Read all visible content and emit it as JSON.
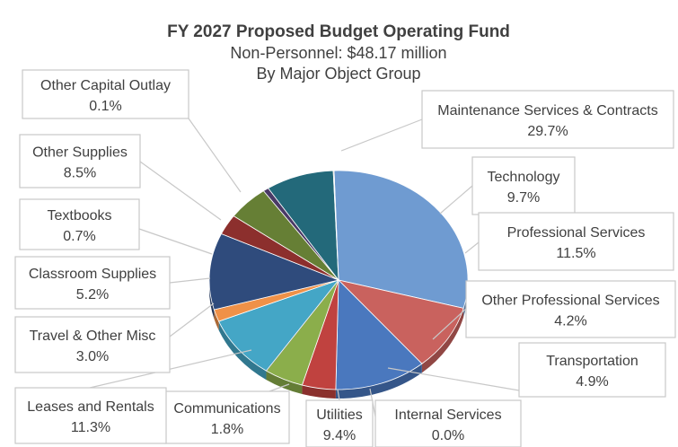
{
  "title": {
    "main": "FY 2027 Proposed Budget Operating Fund",
    "sub1": "Non-Personnel: $48.17 million",
    "sub2": "By Major Object Group"
  },
  "chart_data": {
    "type": "pie",
    "title": "FY 2027 Proposed Budget Operating Fund",
    "subtitle": [
      "Non-Personnel: $48.17 million",
      "By Major Object Group"
    ],
    "slices": [
      {
        "label": "Maintenance Services & Contracts",
        "value": 29.7,
        "display": "29.7%",
        "color": "#6f9bd1"
      },
      {
        "label": "Technology",
        "value": 9.7,
        "display": "9.7%",
        "color": "#c9625e"
      },
      {
        "label": "Professional Services",
        "value": 11.5,
        "display": "11.5%",
        "color": "#4a78be"
      },
      {
        "label": "Other Professional Services",
        "value": 4.2,
        "display": "4.2%",
        "color": "#c0423f"
      },
      {
        "label": "Transportation",
        "value": 4.9,
        "display": "4.9%",
        "color": "#8bae4b"
      },
      {
        "label": "Internal Services",
        "value": 0.0,
        "display": "0.0%",
        "color": "#7a5a9a"
      },
      {
        "label": "Utilities",
        "value": 9.4,
        "display": "9.4%",
        "color": "#44a6c6"
      },
      {
        "label": "Communications",
        "value": 1.8,
        "display": "1.8%",
        "color": "#ef9148"
      },
      {
        "label": "Leases and Rentals",
        "value": 11.3,
        "display": "11.3%",
        "color": "#2f4b7c"
      },
      {
        "label": "Travel & Other Misc",
        "value": 3.0,
        "display": "3.0%",
        "color": "#8c2f2d"
      },
      {
        "label": "Classroom Supplies",
        "value": 5.2,
        "display": "5.2%",
        "color": "#667f35"
      },
      {
        "label": "Textbooks",
        "value": 0.7,
        "display": "0.7%",
        "color": "#4a3a66"
      },
      {
        "label": "Other Supplies",
        "value": 8.5,
        "display": "8.5%",
        "color": "#23697a"
      },
      {
        "label": "Other Capital Outlay",
        "value": 0.1,
        "display": "0.1%",
        "color": "#a55a2a"
      }
    ]
  }
}
